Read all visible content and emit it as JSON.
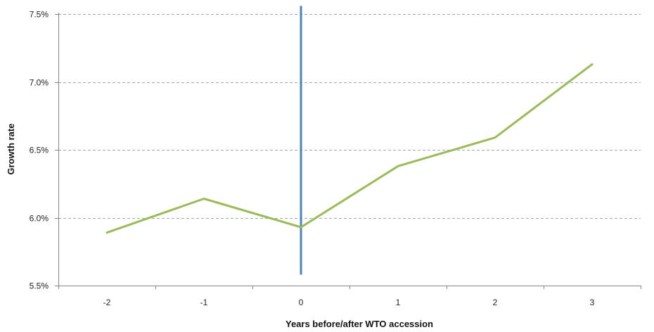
{
  "chart_data": {
    "type": "line",
    "title": "",
    "xlabel": "Years before/after WTO accession",
    "ylabel": "Growth rate",
    "categories": [
      "-2",
      "-1",
      "0",
      "1",
      "2",
      "3"
    ],
    "series": [
      {
        "values": [
          5.89,
          6.14,
          5.93,
          6.38,
          6.59,
          7.13
        ]
      }
    ],
    "ylim": [
      5.5,
      7.5
    ],
    "yticks": [
      "5.5%",
      "6.0%",
      "6.5%",
      "7.0%",
      "7.5%"
    ],
    "ytick_values": [
      5.5,
      6.0,
      6.5,
      7.0,
      7.5
    ],
    "reference_line": {
      "category": "0",
      "from": 5.58,
      "to": 7.56
    },
    "grid": true,
    "grid_style": "dashed-horizontal",
    "legend": "none",
    "colors": {
      "series": "#9bbb59",
      "reference_line": "#4f81bd",
      "grid": "#a6a6a6",
      "axis": "#868686"
    }
  }
}
